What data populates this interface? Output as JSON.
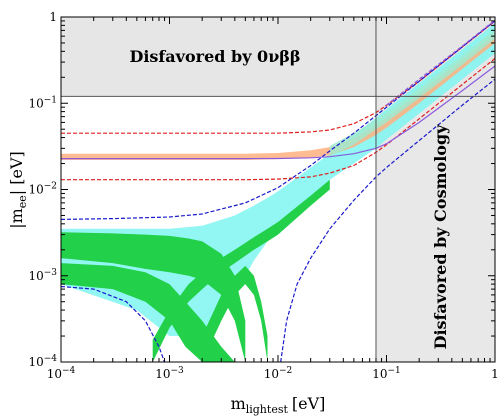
{
  "chart_data": {
    "type": "line",
    "title": "",
    "xlabel": "m",
    "xlabel_sub": "lightest",
    "xlabel_unit": "[eV]",
    "ylabel": "|m",
    "ylabel_sub": "ee",
    "ylabel_unit": "| [eV]",
    "xscale": "log",
    "yscale": "log",
    "xlim": [
      0.0001,
      1
    ],
    "ylim": [
      0.0001,
      1
    ],
    "x_tick_values": [
      0.0001,
      0.001,
      0.01,
      0.1,
      1
    ],
    "y_tick_values": [
      0.0001,
      0.001,
      0.01,
      0.1,
      1
    ],
    "x_tick_labels": [
      {
        "base": "10",
        "exp": "−4"
      },
      {
        "base": "10",
        "exp": "−3"
      },
      {
        "base": "10",
        "exp": "−2"
      },
      {
        "base": "10",
        "exp": "−1"
      },
      {
        "base": "1",
        "exp": ""
      }
    ],
    "y_tick_labels": [
      {
        "base": "10",
        "exp": "−4"
      },
      {
        "base": "10",
        "exp": "−3"
      },
      {
        "base": "10",
        "exp": "−2"
      },
      {
        "base": "10",
        "exp": "−1"
      },
      {
        "base": "1",
        "exp": ""
      }
    ],
    "regions": [
      {
        "label": "Disfavored by 0νββ",
        "y_min": 0.12,
        "color": "#e6e6e6"
      },
      {
        "label": "Disfavored by Cosmology",
        "x_min": 0.08,
        "color": "#e6e6e6"
      }
    ],
    "bands": [
      {
        "color": "#7ff5f0",
        "x": [
          0.0001,
          0.0005,
          0.001,
          0.002,
          0.004,
          0.006,
          0.008,
          0.01,
          0.02,
          0.03,
          0.05,
          0.08,
          0.1,
          0.2,
          0.5,
          1
        ],
        "y_low": [
          0.0008,
          0.0004,
          0.0002,
          0.0002,
          0.0006,
          0.0015,
          0.0025,
          0.0035,
          0.008,
          0.013,
          0.02,
          0.03,
          0.038,
          0.076,
          0.19,
          0.38
        ],
        "y_high": [
          0.0035,
          0.0035,
          0.0035,
          0.0038,
          0.005,
          0.0065,
          0.008,
          0.0095,
          0.018,
          0.026,
          0.043,
          0.068,
          0.085,
          0.17,
          0.42,
          0.85
        ]
      },
      {
        "color": "#ffb080",
        "x": [
          0.0001,
          0.001,
          0.005,
          0.01,
          0.02,
          0.03,
          0.05,
          0.08,
          0.1,
          0.2,
          0.5,
          1
        ],
        "y_low": [
          0.022,
          0.022,
          0.022,
          0.0225,
          0.0235,
          0.025,
          0.031,
          0.043,
          0.052,
          0.1,
          0.25,
          0.5
        ],
        "y_high": [
          0.026,
          0.026,
          0.026,
          0.0265,
          0.0285,
          0.031,
          0.039,
          0.056,
          0.068,
          0.13,
          0.32,
          0.64
        ]
      },
      {
        "color": "#a0ead0",
        "x": [
          0.03,
          0.05,
          0.08,
          0.1,
          0.2,
          0.5,
          1
        ],
        "y_low": [
          0.024,
          0.033,
          0.05,
          0.06,
          0.115,
          0.28,
          0.56
        ],
        "y_high": [
          0.032,
          0.045,
          0.065,
          0.078,
          0.15,
          0.36,
          0.72
        ]
      }
    ],
    "green_bands": [
      {
        "color": "#22d04a",
        "x": [
          0.0001,
          0.0003,
          0.0006,
          0.001,
          0.0014,
          0.002,
          0.003,
          0.004
        ],
        "y_low": [
          0.0008,
          0.0007,
          0.0005,
          0.0003,
          0.00015,
          0.0001,
          0.0001,
          0.0001
        ],
        "y_high": [
          0.0014,
          0.0013,
          0.0011,
          0.0008,
          0.0005,
          0.0003,
          0.00015,
          0.0001
        ]
      },
      {
        "color": "#22d04a",
        "x": [
          0.0001,
          0.0003,
          0.0006,
          0.001,
          0.0015,
          0.002,
          0.003,
          0.004,
          0.005
        ],
        "y_low": [
          0.0016,
          0.0014,
          0.0012,
          0.0011,
          0.001,
          0.0009,
          0.0006,
          0.0003,
          0.0001
        ],
        "y_high": [
          0.0032,
          0.0031,
          0.003,
          0.0029,
          0.0027,
          0.0025,
          0.0018,
          0.001,
          0.0003
        ]
      },
      {
        "color": "#22d04a",
        "x": [
          0.0007,
          0.001,
          0.0015,
          0.002,
          0.003,
          0.004,
          0.006,
          0.008,
          0.01,
          0.02,
          0.03
        ],
        "y_low": [
          0.0001,
          0.00025,
          0.0005,
          0.0007,
          0.0011,
          0.0014,
          0.002,
          0.0025,
          0.003,
          0.0065,
          0.01
        ],
        "y_high": [
          0.00018,
          0.0004,
          0.0008,
          0.0011,
          0.0016,
          0.002,
          0.0028,
          0.0035,
          0.0042,
          0.0085,
          0.013
        ]
      },
      {
        "color": "#22d04a",
        "x": [
          0.002,
          0.003,
          0.004,
          0.005,
          0.006,
          0.007,
          0.008
        ],
        "y_low": [
          0.0001,
          0.0003,
          0.0006,
          0.0008,
          0.0006,
          0.0003,
          0.0001
        ],
        "y_high": [
          0.0002,
          0.0006,
          0.001,
          0.0013,
          0.001,
          0.0005,
          0.0002
        ]
      }
    ],
    "series": [
      {
        "color": "#e02020",
        "dash": true,
        "x": [
          0.0001,
          0.001,
          0.005,
          0.01,
          0.02,
          0.03,
          0.05,
          0.08,
          0.1,
          0.2,
          0.5,
          1
        ],
        "y": [
          0.045,
          0.045,
          0.045,
          0.045,
          0.0465,
          0.049,
          0.058,
          0.078,
          0.095,
          0.18,
          0.45,
          0.9
        ]
      },
      {
        "color": "#e02020",
        "dash": true,
        "x": [
          0.0001,
          0.001,
          0.005,
          0.01,
          0.02,
          0.03,
          0.05,
          0.08,
          0.1,
          0.2,
          0.5,
          1
        ],
        "y": [
          0.013,
          0.013,
          0.013,
          0.0132,
          0.014,
          0.0155,
          0.019,
          0.027,
          0.033,
          0.066,
          0.165,
          0.33
        ]
      },
      {
        "color": "#1a1acc",
        "dash": true,
        "x": [
          0.0001,
          0.0003,
          0.001,
          0.002,
          0.005,
          0.01,
          0.02,
          0.03,
          0.05,
          0.08,
          0.1,
          0.2,
          0.5,
          1
        ],
        "y": [
          0.0045,
          0.0046,
          0.0048,
          0.0052,
          0.007,
          0.0105,
          0.019,
          0.028,
          0.045,
          0.072,
          0.09,
          0.18,
          0.45,
          0.9
        ]
      },
      {
        "color": "#1a1acc",
        "dash": true,
        "x": [
          0.0001,
          0.0002,
          0.0004,
          0.0006,
          0.0008,
          0.0009
        ],
        "y": [
          0.00075,
          0.0007,
          0.0005,
          0.0003,
          0.00015,
          0.0001
        ]
      },
      {
        "color": "#1a1acc",
        "dash": true,
        "x": [
          0.0106,
          0.012,
          0.015,
          0.02,
          0.03,
          0.05,
          0.08,
          0.1,
          0.2,
          0.5,
          1
        ],
        "y": [
          0.0001,
          0.0003,
          0.0008,
          0.0016,
          0.0035,
          0.0075,
          0.014,
          0.018,
          0.037,
          0.095,
          0.19
        ]
      },
      {
        "color": "#8a5adc",
        "dash": false,
        "x": [
          0.0001,
          0.001,
          0.005,
          0.01,
          0.02,
          0.03,
          0.05,
          0.08,
          0.1,
          0.2,
          0.5,
          1
        ],
        "y": [
          0.0228,
          0.0228,
          0.0228,
          0.0229,
          0.0233,
          0.024,
          0.026,
          0.03,
          0.034,
          0.06,
          0.14,
          0.27
        ]
      },
      {
        "color": "#8a5adc",
        "dash": true,
        "x": [
          0.1,
          0.2,
          0.5,
          1
        ],
        "y": [
          0.095,
          0.19,
          0.46,
          0.92
        ]
      }
    ]
  }
}
